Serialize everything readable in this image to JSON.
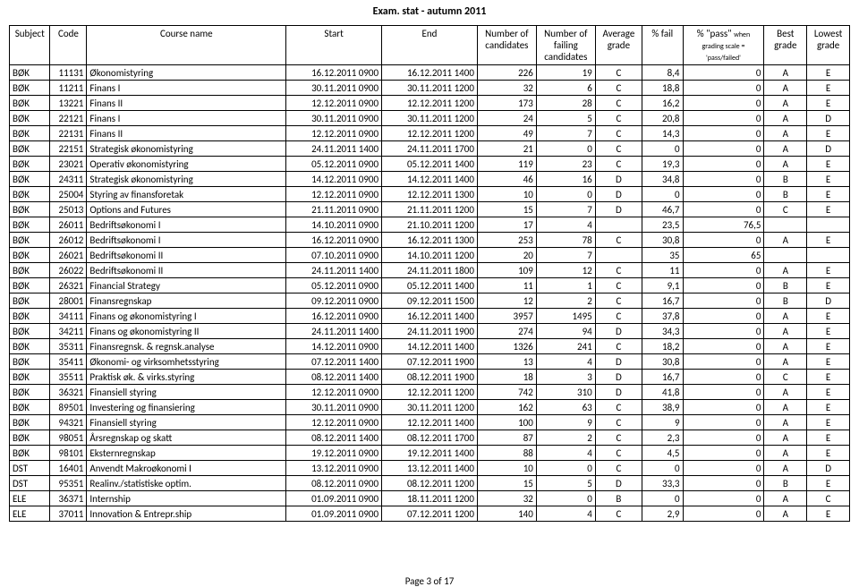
{
  "page": {
    "title": "Exam. stat - autumn 2011",
    "footer": "Page 3 of 17"
  },
  "headers": {
    "subject": "Subject",
    "code": "Code",
    "course": "Course name",
    "start": "Start",
    "end": "End",
    "num_cand": "Number of candidates",
    "num_fail": "Number of failing candidates",
    "avg": "Average grade",
    "pfail": "% fail",
    "ppass_main": "% \"pass\"",
    "ppass_small1": "when grading scale =",
    "ppass_small2": "'pass/failed'",
    "best": "Best grade",
    "lowest": "Lowest grade"
  },
  "rows": [
    {
      "s": "BØK",
      "c": "11131",
      "n": "Økonomistyring",
      "st": "16.12.2011 0900",
      "e": "16.12.2011 1400",
      "nc": "226",
      "nf": "19",
      "avg": "C",
      "pf": "8,4",
      "pp": "0",
      "b": "A",
      "l": "E"
    },
    {
      "s": "BØK",
      "c": "11211",
      "n": "Finans I",
      "st": "30.11.2011 0900",
      "e": "30.11.2011 1200",
      "nc": "32",
      "nf": "6",
      "avg": "C",
      "pf": "18,8",
      "pp": "0",
      "b": "A",
      "l": "E"
    },
    {
      "s": "BØK",
      "c": "13221",
      "n": "Finans II",
      "st": "12.12.2011 0900",
      "e": "12.12.2011 1200",
      "nc": "173",
      "nf": "28",
      "avg": "C",
      "pf": "16,2",
      "pp": "0",
      "b": "A",
      "l": "E"
    },
    {
      "s": "BØK",
      "c": "22121",
      "n": "Finans I",
      "st": "30.11.2011 0900",
      "e": "30.11.2011 1200",
      "nc": "24",
      "nf": "5",
      "avg": "C",
      "pf": "20,8",
      "pp": "0",
      "b": "A",
      "l": "D"
    },
    {
      "s": "BØK",
      "c": "22131",
      "n": "Finans II",
      "st": "12.12.2011 0900",
      "e": "12.12.2011 1200",
      "nc": "49",
      "nf": "7",
      "avg": "C",
      "pf": "14,3",
      "pp": "0",
      "b": "A",
      "l": "E"
    },
    {
      "s": "BØK",
      "c": "22151",
      "n": "Strategisk økonomistyring",
      "st": "24.11.2011 1400",
      "e": "24.11.2011 1700",
      "nc": "21",
      "nf": "0",
      "avg": "C",
      "pf": "0",
      "pp": "0",
      "b": "A",
      "l": "D"
    },
    {
      "s": "BØK",
      "c": "23021",
      "n": "Operativ økonomistyring",
      "st": "05.12.2011 0900",
      "e": "05.12.2011 1400",
      "nc": "119",
      "nf": "23",
      "avg": "C",
      "pf": "19,3",
      "pp": "0",
      "b": "A",
      "l": "E"
    },
    {
      "s": "BØK",
      "c": "24311",
      "n": "Strategisk økonomistyring",
      "st": "14.12.2011 0900",
      "e": "14.12.2011 1400",
      "nc": "46",
      "nf": "16",
      "avg": "D",
      "pf": "34,8",
      "pp": "0",
      "b": "B",
      "l": "E"
    },
    {
      "s": "BØK",
      "c": "25004",
      "n": "Styring av finansforetak",
      "st": "12.12.2011 0900",
      "e": "12.12.2011 1300",
      "nc": "10",
      "nf": "0",
      "avg": "D",
      "pf": "0",
      "pp": "0",
      "b": "B",
      "l": "E"
    },
    {
      "s": "BØK",
      "c": "25013",
      "n": "Options and Futures",
      "st": "21.11.2011 0900",
      "e": "21.11.2011 1200",
      "nc": "15",
      "nf": "7",
      "avg": "D",
      "pf": "46,7",
      "pp": "0",
      "b": "C",
      "l": "E"
    },
    {
      "s": "BØK",
      "c": "26011",
      "n": "Bedriftsøkonomi I",
      "st": "14.10.2011 0900",
      "e": "21.10.2011 1200",
      "nc": "17",
      "nf": "4",
      "avg": "",
      "pf": "23,5",
      "pp": "76,5",
      "b": "",
      "l": ""
    },
    {
      "s": "BØK",
      "c": "26012",
      "n": "Bedriftsøkonomi I",
      "st": "16.12.2011 0900",
      "e": "16.12.2011 1300",
      "nc": "253",
      "nf": "78",
      "avg": "C",
      "pf": "30,8",
      "pp": "0",
      "b": "A",
      "l": "E"
    },
    {
      "s": "BØK",
      "c": "26021",
      "n": "Bedriftsøkonomi II",
      "st": "07.10.2011 0900",
      "e": "14.10.2011 1200",
      "nc": "20",
      "nf": "7",
      "avg": "",
      "pf": "35",
      "pp": "65",
      "b": "",
      "l": ""
    },
    {
      "s": "BØK",
      "c": "26022",
      "n": "Bedriftsøkonomi II",
      "st": "24.11.2011 1400",
      "e": "24.11.2011 1800",
      "nc": "109",
      "nf": "12",
      "avg": "C",
      "pf": "11",
      "pp": "0",
      "b": "A",
      "l": "E"
    },
    {
      "s": "BØK",
      "c": "26321",
      "n": "Financial Strategy",
      "st": "05.12.2011 0900",
      "e": "05.12.2011 1400",
      "nc": "11",
      "nf": "1",
      "avg": "C",
      "pf": "9,1",
      "pp": "0",
      "b": "B",
      "l": "E"
    },
    {
      "s": "BØK",
      "c": "28001",
      "n": "Finansregnskap",
      "st": "09.12.2011 0900",
      "e": "09.12.2011 1500",
      "nc": "12",
      "nf": "2",
      "avg": "C",
      "pf": "16,7",
      "pp": "0",
      "b": "B",
      "l": "D"
    },
    {
      "s": "BØK",
      "c": "34111",
      "n": "Finans og økonomistyring I",
      "st": "16.12.2011 0900",
      "e": "16.12.2011 1400",
      "nc": "3957",
      "nf": "1495",
      "avg": "C",
      "pf": "37,8",
      "pp": "0",
      "b": "A",
      "l": "E"
    },
    {
      "s": "BØK",
      "c": "34211",
      "n": "Finans og økonomistyring II",
      "st": "24.11.2011 1400",
      "e": "24.11.2011 1900",
      "nc": "274",
      "nf": "94",
      "avg": "D",
      "pf": "34,3",
      "pp": "0",
      "b": "A",
      "l": "E"
    },
    {
      "s": "BØK",
      "c": "35311",
      "n": "Finansregnsk. & regnsk.analyse",
      "st": "14.12.2011 0900",
      "e": "14.12.2011 1400",
      "nc": "1326",
      "nf": "241",
      "avg": "C",
      "pf": "18,2",
      "pp": "0",
      "b": "A",
      "l": "E"
    },
    {
      "s": "BØK",
      "c": "35411",
      "n": "Økonomi- og virksomhetsstyring",
      "st": "07.12.2011 1400",
      "e": "07.12.2011 1900",
      "nc": "13",
      "nf": "4",
      "avg": "D",
      "pf": "30,8",
      "pp": "0",
      "b": "A",
      "l": "E"
    },
    {
      "s": "BØK",
      "c": "35511",
      "n": "Praktisk øk. & virks.styring",
      "st": "08.12.2011 1400",
      "e": "08.12.2011 1900",
      "nc": "18",
      "nf": "3",
      "avg": "D",
      "pf": "16,7",
      "pp": "0",
      "b": "C",
      "l": "E"
    },
    {
      "s": "BØK",
      "c": "36321",
      "n": "Finansiell styring",
      "st": "12.12.2011 0900",
      "e": "12.12.2011 1200",
      "nc": "742",
      "nf": "310",
      "avg": "D",
      "pf": "41,8",
      "pp": "0",
      "b": "A",
      "l": "E"
    },
    {
      "s": "BØK",
      "c": "89501",
      "n": "Investering og finansiering",
      "st": "30.11.2011 0900",
      "e": "30.11.2011 1200",
      "nc": "162",
      "nf": "63",
      "avg": "C",
      "pf": "38,9",
      "pp": "0",
      "b": "A",
      "l": "E"
    },
    {
      "s": "BØK",
      "c": "94321",
      "n": "Finansiell styring",
      "st": "12.12.2011 0900",
      "e": "12.12.2011 1400",
      "nc": "100",
      "nf": "9",
      "avg": "C",
      "pf": "9",
      "pp": "0",
      "b": "A",
      "l": "E"
    },
    {
      "s": "BØK",
      "c": "98051",
      "n": "Årsregnskap og skatt",
      "st": "08.12.2011 1400",
      "e": "08.12.2011 1700",
      "nc": "87",
      "nf": "2",
      "avg": "C",
      "pf": "2,3",
      "pp": "0",
      "b": "A",
      "l": "E"
    },
    {
      "s": "BØK",
      "c": "98101",
      "n": "Eksternregnskap",
      "st": "19.12.2011 0900",
      "e": "19.12.2011 1400",
      "nc": "88",
      "nf": "4",
      "avg": "C",
      "pf": "4,5",
      "pp": "0",
      "b": "A",
      "l": "E"
    },
    {
      "s": "DST",
      "c": "16401",
      "n": "Anvendt Makroøkonomi I",
      "st": "13.12.2011 0900",
      "e": "13.12.2011 1400",
      "nc": "10",
      "nf": "0",
      "avg": "C",
      "pf": "0",
      "pp": "0",
      "b": "A",
      "l": "D"
    },
    {
      "s": "DST",
      "c": "95351",
      "n": "Realinv./statistiske optim.",
      "st": "08.12.2011 0900",
      "e": "08.12.2011 1200",
      "nc": "15",
      "nf": "5",
      "avg": "D",
      "pf": "33,3",
      "pp": "0",
      "b": "B",
      "l": "E"
    },
    {
      "s": "ELE",
      "c": "36371",
      "n": "Internship",
      "st": "01.09.2011 0900",
      "e": "18.11.2011 1200",
      "nc": "32",
      "nf": "0",
      "avg": "B",
      "pf": "0",
      "pp": "0",
      "b": "A",
      "l": "C"
    },
    {
      "s": "ELE",
      "c": "37011",
      "n": "Innovation & Entrepr.ship",
      "st": "01.09.2011 0900",
      "e": "07.12.2011 1200",
      "nc": "140",
      "nf": "4",
      "avg": "C",
      "pf": "2,9",
      "pp": "0",
      "b": "A",
      "l": "E"
    }
  ]
}
